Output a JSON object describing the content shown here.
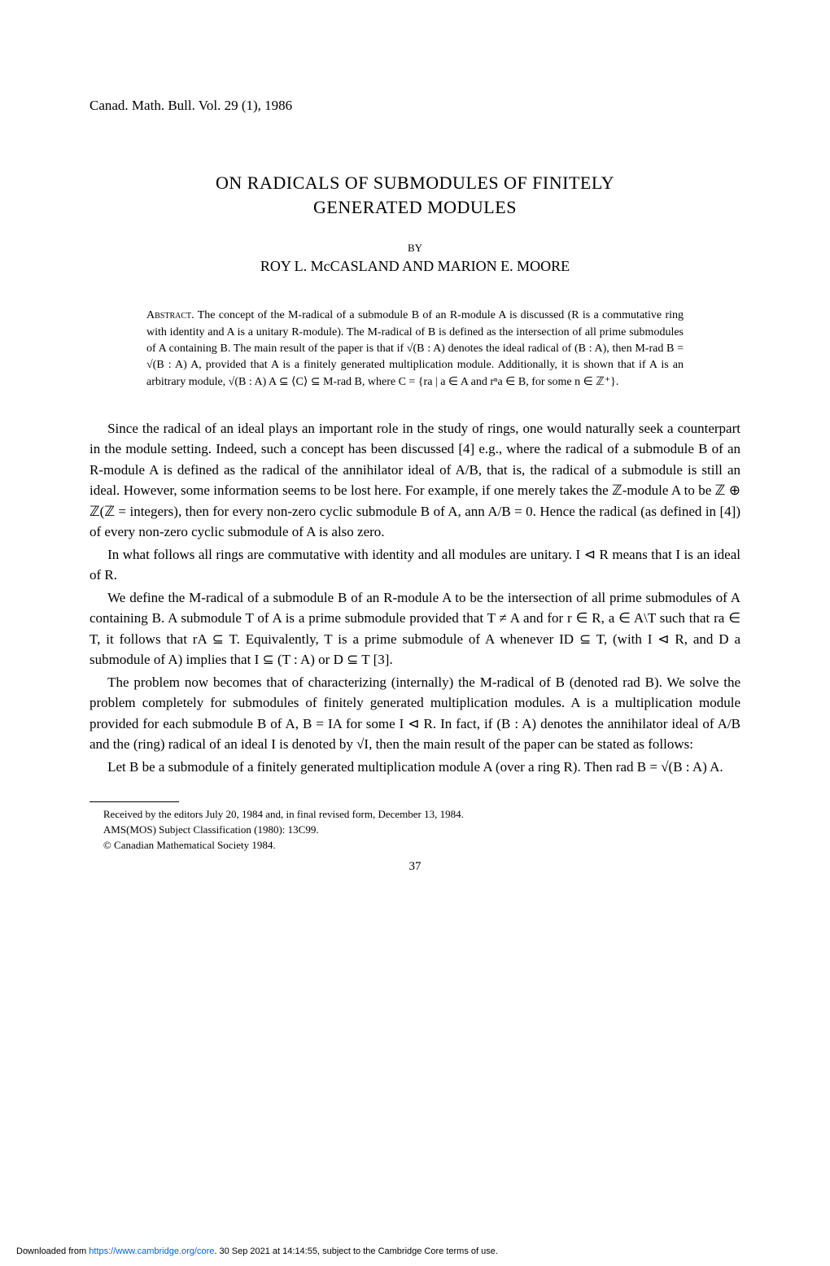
{
  "header": "Canad. Math. Bull. Vol. 29 (1), 1986",
  "title_line1": "ON RADICALS OF SUBMODULES OF FINITELY",
  "title_line2": "GENERATED MODULES",
  "by": "BY",
  "authors": "ROY L. McCASLAND AND MARION E. MOORE",
  "abstract_label": "Abstract.",
  "abstract_text": "The concept of the M-radical of a submodule B of an R-module A is discussed (R is a commutative ring with identity and A is a unitary R-module). The M-radical of B is defined as the intersection of all prime submodules of A containing B. The main result of the paper is that if √(B : A) denotes the ideal radical of (B : A), then M-rad B = √(B : A) A, provided that A is a finitely generated multiplication module. Additionally, it is shown that if A is an arbitrary module, √(B : A) A ⊆ ⟨C⟩ ⊆ M-rad B, where C = {ra | a ∈ A and rⁿa ∈ B, for some n ∈ ℤ⁺}.",
  "paragraphs": [
    "Since the radical of an ideal plays an important role in the study of rings, one would naturally seek a counterpart in the module setting. Indeed, such a concept has been discussed [4] e.g., where the radical of a submodule B of an R-module A is defined as the radical of the annihilator ideal of A/B, that is, the radical of a submodule is still an ideal. However, some information seems to be lost here. For example, if one merely takes the ℤ-module A to be ℤ ⊕ ℤ(ℤ = integers), then for every non-zero cyclic submodule B of A, ann A/B = 0. Hence the radical (as defined in [4]) of every non-zero cyclic submodule of A is also zero.",
    "In what follows all rings are commutative with identity and all modules are unitary. I ⊲ R means that I is an ideal of R.",
    "We define the M-radical of a submodule B of an R-module A to be the intersection of all prime submodules of A containing B. A submodule T of A is a prime submodule provided that T ≠ A and for r ∈ R, a ∈ A\\T such that ra ∈ T, it follows that rA ⊆ T. Equivalently, T is a prime submodule of A whenever ID ⊆ T, (with I ⊲ R, and D a submodule of A) implies that I ⊆ (T : A) or D ⊆ T [3].",
    "The problem now becomes that of characterizing (internally) the M-radical of B (denoted rad B). We solve the problem completely for submodules of finitely generated multiplication modules. A is a multiplication module provided for each submodule B of A, B = IA for some I ⊲ R. In fact, if (B : A) denotes the annihilator ideal of A/B and the (ring) radical of an ideal I is denoted by √I, then the main result of the paper can be stated as follows:",
    "Let B be a submodule of a finitely generated multiplication module A (over a ring R). Then rad B = √(B : A) A."
  ],
  "footnotes": [
    "Received by the editors July 20, 1984 and, in final revised form, December 13, 1984.",
    "AMS(MOS) Subject Classification (1980): 13C99.",
    "© Canadian Mathematical Society 1984."
  ],
  "page_number": "37",
  "download_prefix": "Downloaded from ",
  "download_url": "https://www.cambridge.org/core",
  "download_suffix": ". 30 Sep 2021 at 14:14:55, subject to the Cambridge Core terms of use."
}
